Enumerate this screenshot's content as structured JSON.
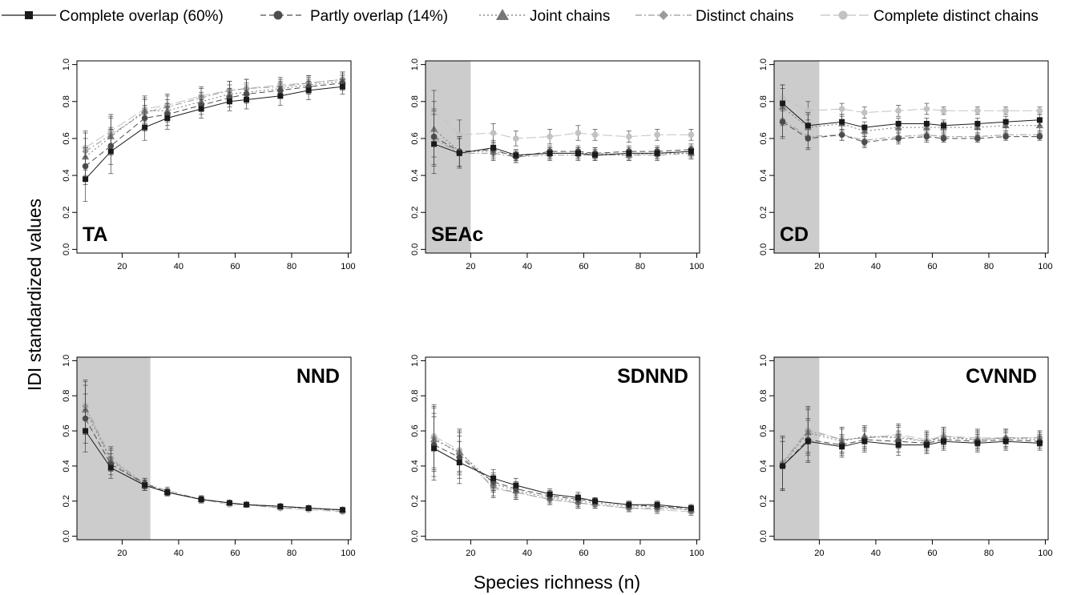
{
  "legend": {
    "items": [
      {
        "label": "Complete overlap (60%)",
        "color": "#1a1a1a",
        "marker": "square",
        "dash": ""
      },
      {
        "label": "Partly overlap (14%)",
        "color": "#4d4d4d",
        "marker": "circle",
        "dash": "7,4"
      },
      {
        "label": "Joint chains",
        "color": "#777777",
        "marker": "triangle",
        "dash": "2,3"
      },
      {
        "label": "Distinct chains",
        "color": "#9a9a9a",
        "marker": "diamond",
        "dash": "8,3,2,3"
      },
      {
        "label": "Complete distinct chains",
        "color": "#c2c2c2",
        "marker": "circle",
        "dash": "12,4"
      }
    ]
  },
  "axes": {
    "ylabel": "IDI standardized values",
    "xlabel": "Species richness (n)"
  },
  "colors": {
    "shade": "#cccccc",
    "frame": "#000000",
    "errorbar": "#444444"
  },
  "chart_data": [
    {
      "type": "line",
      "label": "TA",
      "label_pos": "bottom-left",
      "shade_to": null,
      "x": [
        7,
        16,
        28,
        36,
        48,
        58,
        64,
        76,
        86,
        98
      ],
      "xlim": [
        4,
        101
      ],
      "ylim": [
        -0.02,
        1.02
      ],
      "xticks": [
        "20",
        "40",
        "60",
        "80",
        "100"
      ],
      "yticks": [
        "0.0",
        "0.2",
        "0.4",
        "0.6",
        "0.8",
        "1.0"
      ],
      "series": [
        {
          "name": "Complete overlap (60%)",
          "values": [
            0.38,
            0.53,
            0.66,
            0.71,
            0.76,
            0.8,
            0.81,
            0.83,
            0.86,
            0.88
          ],
          "err": [
            0.12,
            0.12,
            0.07,
            0.06,
            0.05,
            0.05,
            0.05,
            0.05,
            0.05,
            0.04
          ]
        },
        {
          "name": "Partly overlap (14%)",
          "values": [
            0.45,
            0.56,
            0.71,
            0.73,
            0.78,
            0.82,
            0.84,
            0.86,
            0.88,
            0.9
          ],
          "err": [
            0.1,
            0.1,
            0.07,
            0.06,
            0.05,
            0.05,
            0.05,
            0.04,
            0.04,
            0.04
          ]
        },
        {
          "name": "Joint chains",
          "values": [
            0.5,
            0.61,
            0.75,
            0.75,
            0.8,
            0.84,
            0.85,
            0.87,
            0.89,
            0.91
          ],
          "err": [
            0.1,
            0.1,
            0.07,
            0.06,
            0.05,
            0.05,
            0.05,
            0.04,
            0.04,
            0.04
          ]
        },
        {
          "name": "Distinct chains",
          "values": [
            0.53,
            0.62,
            0.74,
            0.77,
            0.82,
            0.86,
            0.87,
            0.88,
            0.9,
            0.92
          ],
          "err": [
            0.1,
            0.1,
            0.07,
            0.06,
            0.05,
            0.05,
            0.05,
            0.04,
            0.04,
            0.04
          ]
        },
        {
          "name": "Complete distinct chains",
          "values": [
            0.55,
            0.64,
            0.76,
            0.78,
            0.83,
            0.86,
            0.87,
            0.89,
            0.9,
            0.92
          ],
          "err": [
            0.09,
            0.09,
            0.07,
            0.06,
            0.05,
            0.05,
            0.05,
            0.04,
            0.04,
            0.04
          ]
        }
      ]
    },
    {
      "type": "line",
      "label": "SEAc",
      "label_pos": "bottom-left",
      "shade_to": 20,
      "x": [
        7,
        16,
        28,
        36,
        48,
        58,
        64,
        76,
        86,
        98
      ],
      "xlim": [
        4,
        101
      ],
      "ylim": [
        -0.02,
        1.02
      ],
      "xticks": [
        "20",
        "40",
        "60",
        "80",
        "100"
      ],
      "yticks": [
        "0.0",
        "0.2",
        "0.4",
        "0.6",
        "0.8",
        "1.0"
      ],
      "series": [
        {
          "name": "Complete overlap (60%)",
          "values": [
            0.57,
            0.52,
            0.55,
            0.51,
            0.52,
            0.52,
            0.51,
            0.52,
            0.52,
            0.53
          ],
          "err": [
            0.16,
            0.08,
            0.04,
            0.03,
            0.03,
            0.03,
            0.03,
            0.03,
            0.03,
            0.03
          ]
        },
        {
          "name": "Partly overlap (14%)",
          "values": [
            0.61,
            0.53,
            0.54,
            0.5,
            0.53,
            0.53,
            0.52,
            0.53,
            0.53,
            0.54
          ],
          "err": [
            0.15,
            0.08,
            0.04,
            0.03,
            0.03,
            0.03,
            0.03,
            0.03,
            0.03,
            0.03
          ]
        },
        {
          "name": "Joint chains",
          "values": [
            0.65,
            0.53,
            0.53,
            0.51,
            0.52,
            0.52,
            0.52,
            0.51,
            0.52,
            0.52
          ],
          "err": [
            0.15,
            0.08,
            0.04,
            0.03,
            0.03,
            0.03,
            0.03,
            0.03,
            0.03,
            0.03
          ]
        },
        {
          "name": "Distinct chains",
          "values": [
            0.6,
            0.52,
            0.52,
            0.5,
            0.51,
            0.51,
            0.51,
            0.51,
            0.51,
            0.52
          ],
          "err": [
            0.15,
            0.08,
            0.04,
            0.03,
            0.03,
            0.03,
            0.03,
            0.03,
            0.03,
            0.03
          ]
        },
        {
          "name": "Complete distinct chains",
          "values": [
            0.75,
            0.62,
            0.63,
            0.6,
            0.61,
            0.63,
            0.62,
            0.61,
            0.62,
            0.62
          ],
          "err": [
            0.11,
            0.08,
            0.05,
            0.04,
            0.04,
            0.04,
            0.03,
            0.03,
            0.03,
            0.03
          ]
        }
      ]
    },
    {
      "type": "line",
      "label": "CD",
      "label_pos": "bottom-left",
      "shade_to": 20,
      "x": [
        7,
        16,
        28,
        36,
        48,
        58,
        64,
        76,
        86,
        98
      ],
      "xlim": [
        4,
        101
      ],
      "ylim": [
        -0.02,
        1.02
      ],
      "xticks": [
        "20",
        "40",
        "60",
        "80",
        "100"
      ],
      "yticks": [
        "0.0",
        "0.2",
        "0.4",
        "0.6",
        "0.8",
        "1.0"
      ],
      "series": [
        {
          "name": "Complete overlap (60%)",
          "values": [
            0.79,
            0.67,
            0.69,
            0.66,
            0.68,
            0.68,
            0.67,
            0.68,
            0.69,
            0.7
          ],
          "err": [
            0.1,
            0.07,
            0.04,
            0.03,
            0.03,
            0.03,
            0.03,
            0.03,
            0.03,
            0.03
          ]
        },
        {
          "name": "Partly overlap (14%)",
          "values": [
            0.69,
            0.6,
            0.62,
            0.58,
            0.6,
            0.61,
            0.6,
            0.6,
            0.61,
            0.61
          ],
          "err": [
            0.09,
            0.06,
            0.03,
            0.03,
            0.03,
            0.03,
            0.02,
            0.02,
            0.02,
            0.02
          ]
        },
        {
          "name": "Joint chains",
          "values": [
            0.77,
            0.66,
            0.68,
            0.64,
            0.66,
            0.66,
            0.66,
            0.66,
            0.67,
            0.67
          ],
          "err": [
            0.1,
            0.07,
            0.04,
            0.03,
            0.03,
            0.03,
            0.03,
            0.03,
            0.03,
            0.03
          ]
        },
        {
          "name": "Distinct chains",
          "values": [
            0.7,
            0.61,
            0.62,
            0.59,
            0.61,
            0.62,
            0.61,
            0.61,
            0.62,
            0.62
          ],
          "err": [
            0.09,
            0.06,
            0.03,
            0.03,
            0.03,
            0.03,
            0.02,
            0.02,
            0.02,
            0.02
          ]
        },
        {
          "name": "Complete distinct chains",
          "values": [
            0.82,
            0.75,
            0.76,
            0.74,
            0.75,
            0.76,
            0.75,
            0.75,
            0.75,
            0.75
          ],
          "err": [
            0.07,
            0.05,
            0.03,
            0.03,
            0.03,
            0.03,
            0.02,
            0.02,
            0.02,
            0.02
          ]
        }
      ]
    },
    {
      "type": "line",
      "label": "NND",
      "label_pos": "top-right",
      "shade_to": 30,
      "x": [
        7,
        16,
        28,
        36,
        48,
        58,
        64,
        76,
        86,
        98
      ],
      "xlim": [
        4,
        101
      ],
      "ylim": [
        -0.02,
        1.02
      ],
      "xticks": [
        "20",
        "40",
        "60",
        "80",
        "100"
      ],
      "yticks": [
        "0.0",
        "0.2",
        "0.4",
        "0.6",
        "0.8",
        "1.0"
      ],
      "series": [
        {
          "name": "Complete overlap (60%)",
          "values": [
            0.6,
            0.39,
            0.29,
            0.25,
            0.21,
            0.19,
            0.18,
            0.17,
            0.16,
            0.15
          ],
          "err": [
            0.12,
            0.06,
            0.03,
            0.02,
            0.02,
            0.01,
            0.01,
            0.01,
            0.01,
            0.01
          ]
        },
        {
          "name": "Partly overlap (14%)",
          "values": [
            0.67,
            0.41,
            0.3,
            0.25,
            0.21,
            0.19,
            0.18,
            0.17,
            0.16,
            0.15
          ],
          "err": [
            0.14,
            0.06,
            0.03,
            0.02,
            0.02,
            0.01,
            0.01,
            0.01,
            0.01,
            0.01
          ]
        },
        {
          "name": "Joint chains",
          "values": [
            0.72,
            0.43,
            0.29,
            0.25,
            0.21,
            0.19,
            0.18,
            0.17,
            0.16,
            0.15
          ],
          "err": [
            0.14,
            0.06,
            0.03,
            0.02,
            0.02,
            0.01,
            0.01,
            0.01,
            0.01,
            0.01
          ]
        },
        {
          "name": "Distinct chains",
          "values": [
            0.74,
            0.44,
            0.3,
            0.26,
            0.21,
            0.19,
            0.18,
            0.16,
            0.16,
            0.14
          ],
          "err": [
            0.14,
            0.06,
            0.03,
            0.02,
            0.02,
            0.01,
            0.01,
            0.01,
            0.01,
            0.01
          ]
        },
        {
          "name": "Complete distinct chains",
          "values": [
            0.75,
            0.45,
            0.29,
            0.25,
            0.21,
            0.18,
            0.18,
            0.16,
            0.15,
            0.14
          ],
          "err": [
            0.14,
            0.06,
            0.03,
            0.02,
            0.02,
            0.01,
            0.01,
            0.01,
            0.01,
            0.01
          ]
        }
      ]
    },
    {
      "type": "line",
      "label": "SDNND",
      "label_pos": "top-right",
      "shade_to": null,
      "x": [
        7,
        16,
        28,
        36,
        48,
        58,
        64,
        76,
        86,
        98
      ],
      "xlim": [
        4,
        101
      ],
      "ylim": [
        -0.02,
        1.02
      ],
      "xticks": [
        "20",
        "40",
        "60",
        "80",
        "100"
      ],
      "yticks": [
        "0.0",
        "0.2",
        "0.4",
        "0.6",
        "0.8",
        "1.0"
      ],
      "series": [
        {
          "name": "Complete overlap (60%)",
          "values": [
            0.5,
            0.42,
            0.33,
            0.29,
            0.24,
            0.22,
            0.2,
            0.18,
            0.18,
            0.16
          ],
          "err": [
            0.18,
            0.12,
            0.05,
            0.04,
            0.03,
            0.03,
            0.02,
            0.02,
            0.02,
            0.02
          ]
        },
        {
          "name": "Partly overlap (14%)",
          "values": [
            0.52,
            0.45,
            0.31,
            0.27,
            0.23,
            0.21,
            0.2,
            0.18,
            0.17,
            0.16
          ],
          "err": [
            0.18,
            0.12,
            0.05,
            0.04,
            0.03,
            0.03,
            0.02,
            0.02,
            0.02,
            0.02
          ]
        },
        {
          "name": "Joint chains",
          "values": [
            0.55,
            0.48,
            0.3,
            0.26,
            0.22,
            0.2,
            0.19,
            0.17,
            0.17,
            0.15
          ],
          "err": [
            0.18,
            0.12,
            0.05,
            0.04,
            0.03,
            0.03,
            0.02,
            0.02,
            0.02,
            0.02
          ]
        },
        {
          "name": "Distinct chains",
          "values": [
            0.56,
            0.47,
            0.28,
            0.25,
            0.21,
            0.19,
            0.18,
            0.16,
            0.16,
            0.15
          ],
          "err": [
            0.18,
            0.12,
            0.05,
            0.04,
            0.03,
            0.03,
            0.02,
            0.02,
            0.02,
            0.02
          ]
        },
        {
          "name": "Complete distinct chains",
          "values": [
            0.57,
            0.49,
            0.27,
            0.25,
            0.21,
            0.19,
            0.18,
            0.16,
            0.15,
            0.14
          ],
          "err": [
            0.18,
            0.12,
            0.05,
            0.04,
            0.03,
            0.03,
            0.02,
            0.02,
            0.02,
            0.02
          ]
        }
      ]
    },
    {
      "type": "line",
      "label": "CVNND",
      "label_pos": "top-right",
      "shade_to": 20,
      "x": [
        7,
        16,
        28,
        36,
        48,
        58,
        64,
        76,
        86,
        98
      ],
      "xlim": [
        4,
        101
      ],
      "ylim": [
        -0.02,
        1.02
      ],
      "xticks": [
        "20",
        "40",
        "60",
        "80",
        "100"
      ],
      "yticks": [
        "0.0",
        "0.2",
        "0.4",
        "0.6",
        "0.8",
        "1.0"
      ],
      "series": [
        {
          "name": "Complete overlap (60%)",
          "values": [
            0.4,
            0.54,
            0.51,
            0.54,
            0.52,
            0.52,
            0.54,
            0.53,
            0.54,
            0.53
          ],
          "err": [
            0.14,
            0.12,
            0.06,
            0.06,
            0.06,
            0.05,
            0.05,
            0.05,
            0.05,
            0.04
          ]
        },
        {
          "name": "Partly overlap (14%)",
          "values": [
            0.4,
            0.55,
            0.52,
            0.55,
            0.54,
            0.53,
            0.55,
            0.54,
            0.55,
            0.54
          ],
          "err": [
            0.14,
            0.12,
            0.06,
            0.06,
            0.06,
            0.05,
            0.05,
            0.05,
            0.05,
            0.04
          ]
        },
        {
          "name": "Joint chains",
          "values": [
            0.41,
            0.59,
            0.54,
            0.57,
            0.56,
            0.54,
            0.56,
            0.55,
            0.56,
            0.55
          ],
          "err": [
            0.15,
            0.13,
            0.07,
            0.06,
            0.06,
            0.05,
            0.05,
            0.05,
            0.05,
            0.04
          ]
        },
        {
          "name": "Distinct chains",
          "values": [
            0.42,
            0.6,
            0.55,
            0.56,
            0.57,
            0.54,
            0.57,
            0.55,
            0.56,
            0.56
          ],
          "err": [
            0.15,
            0.13,
            0.07,
            0.06,
            0.06,
            0.05,
            0.05,
            0.05,
            0.05,
            0.04
          ]
        },
        {
          "name": "Complete distinct chains",
          "values": [
            0.42,
            0.61,
            0.55,
            0.56,
            0.58,
            0.55,
            0.57,
            0.56,
            0.56,
            0.56
          ],
          "err": [
            0.15,
            0.13,
            0.07,
            0.06,
            0.06,
            0.05,
            0.05,
            0.05,
            0.05,
            0.04
          ]
        }
      ]
    }
  ]
}
